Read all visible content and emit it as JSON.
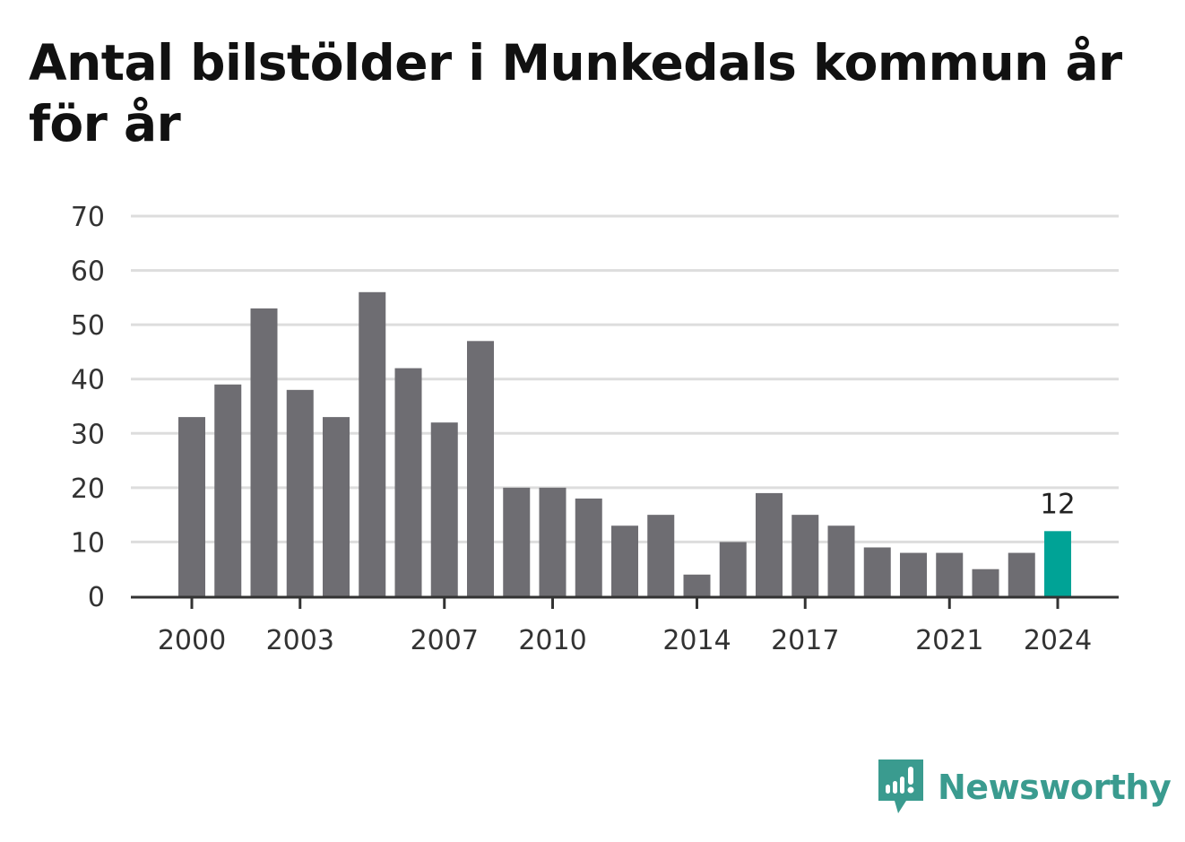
{
  "title": "Antal bilstölder i Munkedals kommun år för år",
  "brand": {
    "name": "Newsworthy",
    "icon": "newsworthy-logo-icon",
    "color": "#3a9b8f"
  },
  "colors": {
    "bar": "#6e6d72",
    "highlight": "#00a396",
    "grid": "#dddddd",
    "axis": "#333333"
  },
  "chart_data": {
    "type": "bar",
    "title": "Antal bilstölder i Munkedals kommun år för år",
    "xlabel": "",
    "ylabel": "",
    "categories": [
      "2000",
      "2001",
      "2002",
      "2003",
      "2004",
      "2005",
      "2006",
      "2007",
      "2008",
      "2009",
      "2010",
      "2011",
      "2012",
      "2013",
      "2014",
      "2015",
      "2016",
      "2017",
      "2018",
      "2019",
      "2020",
      "2021",
      "2022",
      "2023",
      "2024"
    ],
    "values": [
      33,
      39,
      53,
      38,
      33,
      56,
      42,
      32,
      47,
      20,
      20,
      18,
      13,
      15,
      4,
      10,
      19,
      15,
      13,
      9,
      8,
      8,
      5,
      8,
      12
    ],
    "x_tick_labels": [
      "2000",
      "2003",
      "2007",
      "2010",
      "2014",
      "2017",
      "2021",
      "2024"
    ],
    "y_ticks": [
      0,
      10,
      20,
      30,
      40,
      50,
      60,
      70
    ],
    "ylim": [
      0,
      70
    ],
    "grid": true,
    "highlight": {
      "category": "2024",
      "label": "12"
    },
    "legend": "none"
  }
}
